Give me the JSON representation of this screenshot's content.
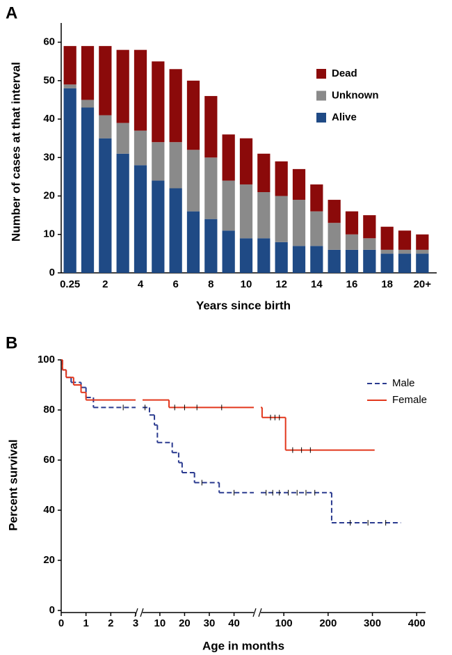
{
  "chart_data": [
    {
      "type": "stacked_bar",
      "panel_label": "A",
      "x_label": "Years since birth",
      "y_label": "Number of cases at that interval",
      "categories": [
        "0.25",
        null,
        "2",
        null,
        "4",
        null,
        "6",
        null,
        "8",
        null,
        "10",
        null,
        "12",
        null,
        "14",
        null,
        "16",
        null,
        "18",
        null,
        "20+"
      ],
      "series": [
        {
          "name": "Alive",
          "color": "#1f4a85",
          "values": [
            48,
            43,
            35,
            31,
            28,
            24,
            22,
            16,
            14,
            11,
            9,
            9,
            8,
            7,
            7,
            6,
            6,
            6,
            5,
            5,
            5
          ]
        },
        {
          "name": "Unknown",
          "color": "#8a8a8a",
          "values": [
            1,
            2,
            6,
            8,
            9,
            10,
            12,
            16,
            16,
            13,
            14,
            12,
            12,
            12,
            9,
            7,
            4,
            3,
            1,
            1,
            1
          ]
        },
        {
          "name": "Dead",
          "color": "#8b0a0a",
          "values": [
            10,
            14,
            18,
            19,
            21,
            21,
            19,
            18,
            16,
            12,
            12,
            10,
            9,
            8,
            7,
            6,
            6,
            6,
            6,
            5,
            4
          ]
        }
      ],
      "ylim": [
        0,
        65
      ],
      "yticks": [
        0,
        10,
        20,
        30,
        40,
        50,
        60
      ],
      "legend": "upper-right"
    },
    {
      "type": "step",
      "panel_label": "B",
      "x_label": "Age in months",
      "y_label": "Percent survival",
      "x_segments": [
        {
          "xlim": [
            0,
            3
          ],
          "xticks": [
            0,
            1,
            2,
            3
          ]
        },
        {
          "xlim": [
            3,
            48
          ],
          "xticks": [
            10,
            20,
            30,
            40
          ]
        },
        {
          "xlim": [
            48,
            420
          ],
          "xticks": [
            100,
            200,
            300,
            400
          ]
        }
      ],
      "ylim": [
        0,
        100
      ],
      "yticks": [
        0,
        20,
        40,
        60,
        80,
        100
      ],
      "legend": "upper-right",
      "series": [
        {
          "name": "Male",
          "color": "#2a3a8f",
          "dashed": true,
          "x": [
            0,
            0.05,
            0.2,
            0.4,
            0.8,
            1.0,
            1.3,
            5.8,
            7.8,
            9,
            15,
            17.6,
            19,
            24,
            34,
            208,
            364
          ],
          "values": [
            100,
            96,
            93,
            91,
            89,
            85,
            81,
            78,
            74,
            67,
            63,
            59,
            55,
            51,
            47,
            35,
            35
          ],
          "censored_x": [
            2.5,
            4,
            27,
            40,
            60,
            75,
            90,
            110,
            130,
            150,
            170,
            250,
            290,
            330
          ]
        },
        {
          "name": "Female",
          "color": "#e2371c",
          "dashed": false,
          "x": [
            0,
            0.05,
            0.2,
            0.5,
            0.8,
            1.0,
            13.7,
            51,
            104,
            305
          ],
          "values": [
            100,
            96,
            93,
            90,
            87,
            84,
            81,
            77,
            64,
            64
          ],
          "censored_x": [
            16,
            20,
            25,
            35,
            70,
            80,
            90,
            120,
            140,
            160
          ]
        }
      ]
    }
  ]
}
